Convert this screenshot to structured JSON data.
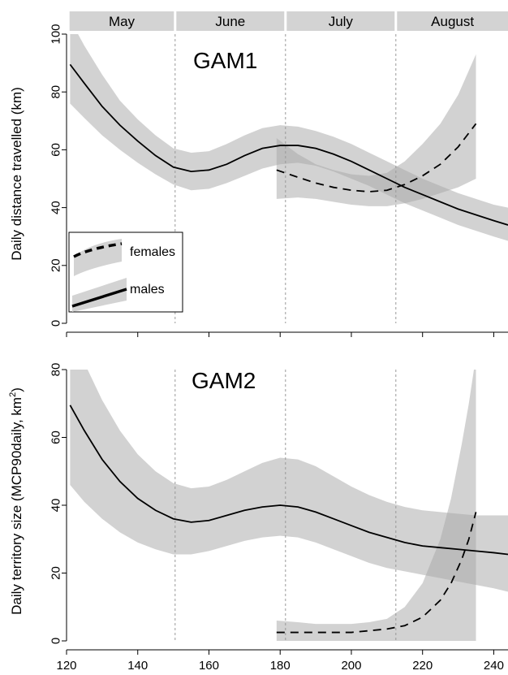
{
  "chart_data": [
    {
      "type": "line",
      "panel_label": "GAM1",
      "ylabel": "Daily distance travelled (km)",
      "xlim": [
        120,
        244
      ],
      "ylim": [
        0,
        100
      ],
      "yticks": [
        0,
        20,
        40,
        60,
        80,
        100
      ],
      "months": [
        {
          "label": "May",
          "start": 121,
          "end": 150
        },
        {
          "label": "June",
          "start": 151,
          "end": 181
        },
        {
          "label": "July",
          "start": 182,
          "end": 212
        },
        {
          "label": "August",
          "start": 213,
          "end": 244
        }
      ],
      "month_dividers": [
        150.5,
        181.5,
        212.5
      ],
      "legend": {
        "placement": "left",
        "entries": [
          {
            "label": "females",
            "style": "dashed"
          },
          {
            "label": "males",
            "style": "solid"
          }
        ]
      },
      "series": [
        {
          "name": "males",
          "style": "solid",
          "x": [
            121,
            125,
            130,
            135,
            140,
            145,
            150,
            155,
            160,
            165,
            170,
            175,
            180,
            185,
            190,
            195,
            200,
            205,
            210,
            215,
            220,
            225,
            230,
            235,
            240,
            244
          ],
          "y": [
            89.5,
            83,
            75,
            68.5,
            63,
            58,
            54,
            52.5,
            53,
            55,
            58,
            60.5,
            61.5,
            61.5,
            60.5,
            58.5,
            56,
            53,
            50,
            47,
            44.5,
            42,
            39.5,
            37.5,
            35.5,
            34
          ],
          "lower": [
            76,
            71,
            65,
            60,
            55.5,
            51.5,
            48,
            46,
            46.5,
            48.5,
            51,
            53.5,
            55,
            55.5,
            54.5,
            52.5,
            50,
            47.5,
            44.5,
            41.5,
            39,
            36.5,
            34,
            32,
            30,
            28.5
          ],
          "upper": [
            105,
            96,
            86,
            77,
            70.5,
            65,
            60.5,
            59,
            59.5,
            62,
            65,
            67.5,
            68.5,
            68,
            66.5,
            64.5,
            62,
            59,
            56,
            53,
            50,
            47.5,
            45,
            43,
            41,
            40
          ]
        },
        {
          "name": "females",
          "style": "dashed",
          "x": [
            179,
            185,
            190,
            195,
            200,
            205,
            210,
            215,
            220,
            225,
            230,
            235
          ],
          "y": [
            53,
            50.5,
            48.5,
            47,
            46,
            45.5,
            46,
            48,
            51,
            55,
            61,
            69
          ],
          "lower": [
            43,
            43.5,
            43,
            42,
            41,
            40.5,
            40.5,
            41.5,
            43,
            45,
            47,
            50
          ],
          "upper": [
            64,
            58.5,
            55,
            53,
            51.5,
            51,
            52,
            56,
            62,
            69,
            79,
            93
          ]
        }
      ]
    },
    {
      "type": "line",
      "panel_label": "GAM2",
      "ylabel": "Daily territory size (MCP90daily, km",
      "ylabel_sup": "2",
      "ylabel_end": ")",
      "xlim": [
        120,
        244
      ],
      "ylim": [
        0,
        80
      ],
      "xticks": [
        120,
        140,
        160,
        180,
        200,
        220,
        240
      ],
      "yticks": [
        0,
        20,
        40,
        60,
        80
      ],
      "month_dividers": [
        150.5,
        181.5,
        212.5
      ],
      "series": [
        {
          "name": "males",
          "style": "solid",
          "x": [
            121,
            125,
            130,
            135,
            140,
            145,
            150,
            155,
            160,
            165,
            170,
            175,
            180,
            185,
            190,
            195,
            200,
            205,
            210,
            215,
            220,
            225,
            230,
            235,
            240,
            244
          ],
          "y": [
            69.5,
            62,
            53.5,
            47,
            42,
            38.5,
            36,
            35,
            35.5,
            37,
            38.5,
            39.5,
            40,
            39.5,
            38,
            36,
            34,
            32,
            30.5,
            29,
            28,
            27.5,
            27,
            26.5,
            26,
            25.5
          ],
          "lower": [
            46,
            41,
            36,
            32,
            29,
            27,
            25.5,
            25.5,
            26.5,
            28,
            29.5,
            30.5,
            31,
            30.5,
            29,
            27,
            25,
            23,
            21.5,
            20.5,
            19.5,
            18.5,
            17.5,
            16.5,
            15.5,
            14.5
          ],
          "upper": [
            90,
            82,
            71,
            62,
            55,
            50,
            46.5,
            45,
            45.5,
            47.5,
            50,
            52.5,
            54,
            53.5,
            51.5,
            48.5,
            45.5,
            43,
            41,
            39.5,
            38.5,
            38,
            37.5,
            37,
            37,
            37
          ]
        },
        {
          "name": "females",
          "style": "dashed",
          "x": [
            179,
            185,
            190,
            195,
            200,
            205,
            210,
            215,
            220,
            225,
            228,
            231,
            233,
            235
          ],
          "y": [
            2.5,
            2.5,
            2.5,
            2.5,
            2.5,
            3,
            3.5,
            4.5,
            7,
            12,
            17,
            24,
            30,
            38
          ],
          "lower": [
            0,
            0,
            0,
            0,
            0,
            0,
            0,
            0,
            0,
            0,
            0,
            0,
            0,
            0
          ],
          "upper": [
            6,
            5.5,
            5,
            5,
            5,
            5.5,
            6.5,
            10,
            17,
            30,
            42,
            58,
            70,
            84
          ]
        }
      ]
    }
  ]
}
